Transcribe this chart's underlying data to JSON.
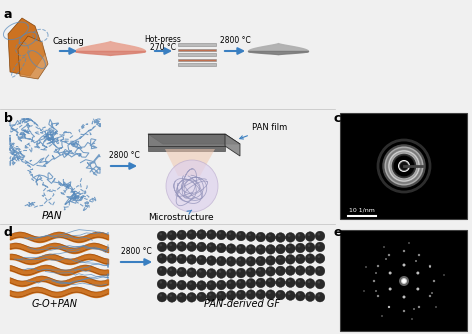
{
  "bg_color": "#f0f0f0",
  "arrow_color": "#3a7fc1",
  "orange_color": "#c8640a",
  "orange_light": "#d4853a",
  "blue_color": "#5588bb",
  "blue_dark": "#2255aa",
  "gray_dark": "#404040",
  "gray_mid": "#707070",
  "gray_light": "#aaaaaa",
  "gray_very_light": "#cccccc",
  "pink_film": "#d98070",
  "pink_light": "#e8a898",
  "lavender": "#ddd0ee",
  "lavender_dark": "#b8a8cc",
  "panel_label_size": 9,
  "text_size": 6,
  "small_text_size": 5.5,
  "scale_label": "10 1/nm",
  "casting_label": "Casting",
  "hotpress_line1": "Hot-press",
  "hotpress_line2": "270 °C",
  "temp_2800": "2800 °C",
  "pan_label": "PAN",
  "pan_film_label": "PAN film",
  "micro_label": "Microstructure",
  "go_pan_label": "G-O+PAN",
  "pan_gf_label": "PAN-derived GF"
}
